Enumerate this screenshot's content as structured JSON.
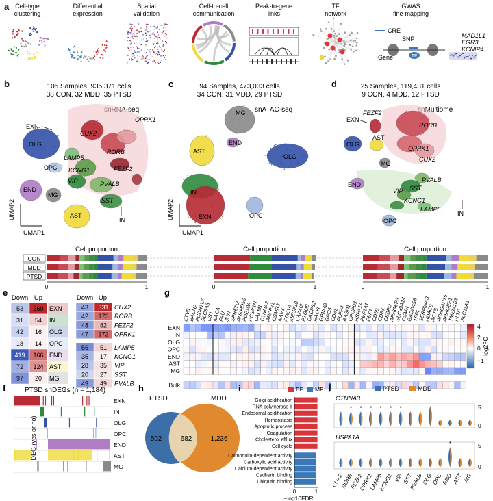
{
  "panel_a": {
    "letter": "a",
    "items": [
      {
        "title1": "Cell-type",
        "title2": "clustering",
        "icon": "cluster-scatter-icon"
      },
      {
        "title1": "Differential",
        "title2": "expression",
        "icon": "volcano-plot-icon"
      },
      {
        "title1": "Spatial",
        "title2": "validation",
        "icon": "spatial-tissue-icon"
      },
      {
        "title1": "Cell-to-cell",
        "title2": "communication",
        "icon": "chord-diagram-icon"
      },
      {
        "title1": "Peak-to-gene",
        "title2": "links",
        "icon": "peak-links-icon"
      },
      {
        "title1": "TF",
        "title2": "network",
        "icon": "network-graph-icon"
      },
      {
        "title1": "GWAS",
        "title2": "fine-mapping",
        "icon": "gwas-schematic-icon"
      }
    ],
    "gwas": {
      "cre": "CRE",
      "snp": "SNP",
      "gene": "Gene",
      "tf": "TF",
      "genes": [
        "MAD1L1",
        "EGR3",
        "KCNIP4"
      ]
    }
  },
  "panel_b": {
    "letter": "b",
    "line1": "105 Samples, 935,371 cells",
    "line2": "38 CON, 32 MDD, 35 PTSD",
    "assay": "snRNA-seq",
    "labels": [
      "EXN",
      "CUX2",
      "OPRK1",
      "RORB",
      "OLG",
      "LAMP5",
      "KCNG1",
      "FEZF2",
      "OPC",
      "VIP",
      "END",
      "MG",
      "PVALB",
      "SST",
      "AST",
      "IN"
    ],
    "umap1": "UMAP1",
    "umap2": "UMAP2"
  },
  "panel_c": {
    "letter": "c",
    "line1": "94 Samples, 473,033 cells",
    "line2": "34 CON, 31 MDD, 29 PTSD",
    "assay": "snATAC-seq",
    "labels": [
      "MG",
      "END",
      "AST",
      "OLG",
      "IN",
      "EXN",
      "OPC"
    ],
    "umap1": "UMAP1",
    "umap2": "UMAP2"
  },
  "panel_d": {
    "letter": "d",
    "line1": "25 Samples, 119,431 cells",
    "line2": "9 CON, 4 MDD, 12 PTSD",
    "assay": "snMultiome",
    "labels": [
      "FEZF2",
      "RORB",
      "EXN",
      "OPRK1",
      "OLG",
      "AST",
      "CUX2",
      "MG",
      "END",
      "PVALB",
      "SST",
      "VIP",
      "KCNG1",
      "LAMP5",
      "IN",
      "OPC"
    ]
  },
  "proportion": {
    "title": "Cell proportion",
    "groups": [
      "CON",
      "MDD",
      "PTSD"
    ],
    "axis": [
      "0",
      "1"
    ]
  },
  "panel_e": {
    "letter": "e",
    "down": "Down",
    "up": "Up",
    "left_rows": [
      {
        "down": "53",
        "up": "269",
        "label": "EXN"
      },
      {
        "down": "31",
        "up": "54",
        "label": "IN"
      },
      {
        "down": "42",
        "up": "16",
        "label": "OLG"
      },
      {
        "down": "18",
        "up": "14",
        "label": "OPC"
      },
      {
        "down": "419",
        "up": "166",
        "label": "END"
      },
      {
        "down": "72",
        "up": "124",
        "label": "AST"
      },
      {
        "down": "97",
        "up": "20",
        "label": "MG"
      }
    ],
    "right_rows": [
      {
        "down": "43",
        "up": "331",
        "label": "CUX2"
      },
      {
        "down": "42",
        "up": "173",
        "label": "RORB"
      },
      {
        "down": "48",
        "up": "82",
        "label": "FEZF2"
      },
      {
        "down": "47",
        "up": "172",
        "label": "OPRK1"
      },
      {
        "down": "56",
        "up": "51",
        "label": "LAMP5"
      },
      {
        "down": "35",
        "up": "17",
        "label": "KCNG1"
      },
      {
        "down": "28",
        "up": "35",
        "label": "VIP"
      },
      {
        "down": "20",
        "up": "27",
        "label": "SST"
      },
      {
        "down": "49",
        "up": "49",
        "label": "PVALB"
      }
    ]
  },
  "panel_g": {
    "letter": "g",
    "genes": [
      "ETV5",
      "BACH2",
      "PCDH11X",
      "SLC8A3",
      "UST",
      "NACA",
      "FAU",
      "JUN",
      "SPRED2",
      "ANKRD55",
      "PDE10A",
      "PCSK1N",
      "CALM1",
      "CTNNA2",
      "ARPP21",
      "OSMR3",
      "NAV3",
      "PDE1A",
      "MEGF10",
      "CADM2",
      "PTGDS",
      "CADPS2",
      "RALYL",
      "GPNMB",
      "GPC5",
      "CD81",
      "PLPP4",
      "RASD1",
      "GPCPD1",
      "HSPA1A",
      "EEF1A1",
      "EEF1",
      "CD59",
      "CD63",
      "CEBPD",
      "ARHGEF3",
      "SLC39A14",
      "OSMR",
      "GADD45B",
      "TFPI",
      "SERPINA3",
      "HDAC9",
      "ACTB",
      "ARHGAP15",
      "ARHGEF1",
      "TMEM163",
      "PLTP",
      "SLC11A1"
    ],
    "rows": [
      "EXN",
      "IN",
      "OLG",
      "OPC",
      "END",
      "AST",
      "MG"
    ],
    "bulk": "Bulk",
    "legend_title": "log2FC",
    "legend_ticks": [
      "4",
      "2",
      "0",
      "−1"
    ]
  },
  "panel_f": {
    "letter": "f",
    "title": "PTSD snDEGs (n = 1,184)",
    "ylabel": "DEG (yes or no)",
    "rows": [
      "EXN",
      "IN",
      "OLG",
      "OPC",
      "END",
      "AST",
      "MG"
    ]
  },
  "panel_h": {
    "letter": "h",
    "left": "PTSD",
    "right": "MDD",
    "left_only": "502",
    "both": "682",
    "right_only": "1,236"
  },
  "panel_i": {
    "letter": "i",
    "legend": [
      "BP",
      "MF"
    ],
    "terms": [
      {
        "term": "Golgi acidification",
        "type": "BP",
        "value": 1.05
      },
      {
        "term": "RNA polymerase II",
        "type": "BP",
        "value": 1.05
      },
      {
        "term": "Endosomal acidification",
        "type": "BP",
        "value": 1.05
      },
      {
        "term": "Homeostasis",
        "type": "BP",
        "value": 1.05
      },
      {
        "term": "Apoptotic process",
        "type": "BP",
        "value": 1.05
      },
      {
        "term": "Coagulation",
        "type": "BP",
        "value": 1.05
      },
      {
        "term": "Cholesterol efflux",
        "type": "BP",
        "value": 1.05
      },
      {
        "term": "Cell cycle",
        "type": "BP",
        "value": 1.05
      },
      {
        "term": "Calmodulin-dependent activity",
        "type": "MF",
        "value": 1.0
      },
      {
        "term": "Carboxylic acid activity",
        "type": "MF",
        "value": 1.0
      },
      {
        "term": "Calcium-dependent activity",
        "type": "MF",
        "value": 1.0
      },
      {
        "term": "Cadherin binding",
        "type": "MF",
        "value": 1.0
      },
      {
        "term": "Ubiquitin binding",
        "type": "MF",
        "value": 1.0
      }
    ],
    "xticks": [
      "0",
      "1"
    ],
    "xlabel": "−log10FDR"
  },
  "panel_j": {
    "letter": "j",
    "legend": [
      "PTSD",
      "MDD"
    ],
    "gene1": "CTNNA3",
    "gene2": "HSPA1A",
    "y1": [
      "5",
      "0"
    ],
    "y2": [
      "5",
      "0"
    ],
    "xcats": [
      "CUX2",
      "RORB",
      "FEZF2",
      "OPRK1",
      "LAMP5",
      "KCNG1",
      "VIP",
      "SST",
      "PVALB",
      "OLG",
      "OPC",
      "END",
      "AST",
      "MG"
    ]
  },
  "colors": {
    "EXN": "#b82a34",
    "IN": "#2e8b3c",
    "OLG": "#3452a8",
    "OPC": "#9fb8dd",
    "END": "#b07cc6",
    "AST": "#f0da3a",
    "MG": "#8a8a8a",
    "PTSD": "#3c6fa8",
    "MDD": "#e0892e",
    "BP": "#d9343a",
    "MF": "#3a78b8"
  }
}
